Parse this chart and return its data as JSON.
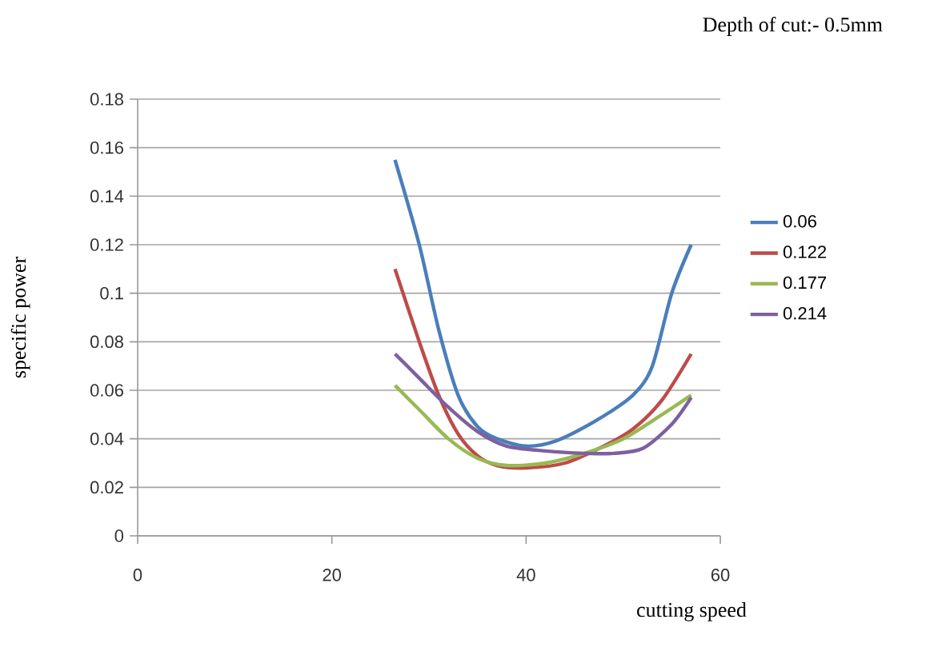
{
  "chart_data": {
    "type": "line",
    "title": "Depth of cut:- 0.5mm",
    "xlabel": "cutting speed",
    "ylabel": "specific power",
    "xlim": [
      0,
      60
    ],
    "xticks": [
      0,
      20,
      40,
      60
    ],
    "ylim": [
      0,
      0.18
    ],
    "yticks": [
      0,
      0.02,
      0.04,
      0.06,
      0.08,
      0.1,
      0.12,
      0.14,
      0.16,
      0.18
    ],
    "grid": "y",
    "legend": "right",
    "marker": "none",
    "line_style": "solid",
    "series": [
      {
        "name": "0.06",
        "color": "#4a7ebb",
        "x": [
          26.5,
          29,
          31,
          33,
          35,
          37,
          40,
          43,
          47,
          51,
          53,
          55,
          57
        ],
        "values": [
          0.155,
          0.12,
          0.085,
          0.058,
          0.045,
          0.04,
          0.037,
          0.039,
          0.047,
          0.058,
          0.07,
          0.1,
          0.12
        ]
      },
      {
        "name": "0.122",
        "color": "#be4b48",
        "x": [
          26.5,
          29,
          31,
          33,
          35,
          37,
          40,
          44,
          48,
          51,
          54,
          57
        ],
        "values": [
          0.11,
          0.08,
          0.058,
          0.042,
          0.033,
          0.029,
          0.028,
          0.03,
          0.037,
          0.044,
          0.056,
          0.075
        ]
      },
      {
        "name": "0.177",
        "color": "#98b954",
        "x": [
          26.5,
          29,
          32,
          35,
          38,
          42,
          46,
          50,
          54,
          57
        ],
        "values": [
          0.062,
          0.052,
          0.04,
          0.032,
          0.029,
          0.03,
          0.034,
          0.04,
          0.05,
          0.058
        ]
      },
      {
        "name": "0.214",
        "color": "#7d60a0",
        "x": [
          26.5,
          29,
          32,
          35,
          38,
          42,
          46,
          49,
          52,
          55,
          57
        ],
        "values": [
          0.075,
          0.065,
          0.053,
          0.043,
          0.037,
          0.035,
          0.034,
          0.034,
          0.036,
          0.046,
          0.057
        ]
      }
    ]
  }
}
